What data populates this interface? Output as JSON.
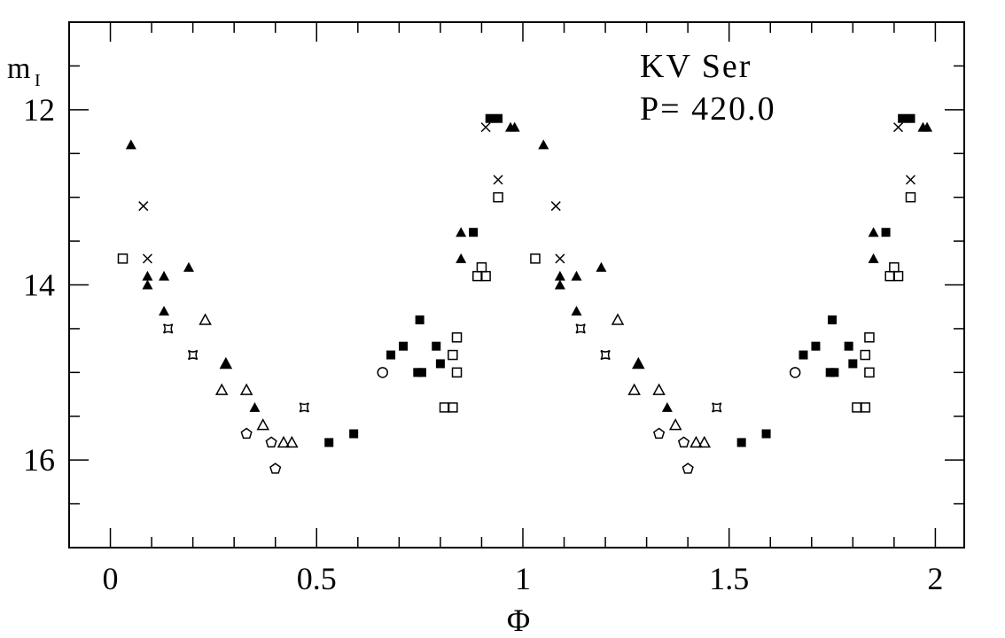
{
  "chart_data": {
    "type": "scatter",
    "title": "",
    "annotations": [
      "KV Ser",
      "P= 420.0"
    ],
    "xlabel": "Φ",
    "ylabel": "m",
    "ylabel_sub": "I",
    "xlim": [
      -0.1,
      2.07
    ],
    "ylim": [
      17.0,
      11.0
    ],
    "y_inverted": true,
    "grid": false,
    "x_ticks": [
      0,
      0.5,
      1,
      1.5,
      2
    ],
    "x_tick_labels": [
      "0",
      "0.5",
      "1",
      "1.5",
      "2"
    ],
    "y_ticks": [
      12,
      14,
      16
    ],
    "y_tick_labels": [
      "12",
      "14",
      "16"
    ],
    "x_minor_step": 0.1,
    "y_minor_step": 0.5,
    "color": "#000000",
    "series": [
      {
        "marker": "filled-triangle",
        "x": [
          0.05,
          0.09,
          0.09,
          0.13,
          0.13,
          0.19,
          0.28,
          0.35,
          0.85,
          0.85,
          0.97,
          0.98,
          1.05,
          1.09,
          1.09,
          1.13,
          1.13,
          1.19,
          1.28,
          1.35,
          1.85,
          1.85,
          1.97,
          1.98
        ],
        "y": [
          12.4,
          13.9,
          14.0,
          13.9,
          14.3,
          13.8,
          14.9,
          15.4,
          13.7,
          13.4,
          12.2,
          12.2,
          12.4,
          13.9,
          14.0,
          13.9,
          14.3,
          13.8,
          14.9,
          15.4,
          13.7,
          13.4,
          12.2,
          12.2
        ]
      },
      {
        "marker": "open-triangle",
        "x": [
          0.23,
          0.28,
          0.27,
          0.33,
          0.37,
          0.42,
          0.44,
          1.23,
          1.28,
          1.27,
          1.33,
          1.37,
          1.42,
          1.44
        ],
        "y": [
          14.4,
          14.9,
          15.2,
          15.2,
          15.6,
          15.8,
          15.8,
          14.4,
          14.9,
          15.2,
          15.2,
          15.6,
          15.8,
          15.8
        ]
      },
      {
        "marker": "filled-square",
        "x": [
          0.53,
          0.59,
          0.68,
          0.71,
          0.75,
          0.745,
          0.755,
          0.79,
          0.8,
          0.88,
          0.92,
          0.94,
          1.53,
          1.59,
          1.68,
          1.71,
          1.75,
          1.745,
          1.755,
          1.79,
          1.8,
          1.88,
          1.92,
          1.94
        ],
        "y": [
          15.8,
          15.7,
          14.8,
          14.7,
          14.4,
          15.0,
          15.0,
          14.7,
          14.9,
          13.4,
          12.1,
          12.1,
          15.8,
          15.7,
          14.8,
          14.7,
          14.4,
          15.0,
          15.0,
          14.7,
          14.9,
          13.4,
          12.1,
          12.1
        ]
      },
      {
        "marker": "open-square",
        "x": [
          0.03,
          0.81,
          0.83,
          0.84,
          0.83,
          0.84,
          0.89,
          0.91,
          0.9,
          0.94,
          1.03,
          1.81,
          1.83,
          1.84,
          1.83,
          1.84,
          1.89,
          1.91,
          1.9,
          1.94
        ],
        "y": [
          13.7,
          15.4,
          15.4,
          14.6,
          14.8,
          15.0,
          13.9,
          13.9,
          13.8,
          13.0,
          13.7,
          15.4,
          15.4,
          14.6,
          14.8,
          15.0,
          13.9,
          13.9,
          13.8,
          13.0
        ]
      },
      {
        "marker": "cross",
        "x": [
          0.08,
          0.09,
          0.91,
          0.94,
          1.08,
          1.09,
          1.91,
          1.94
        ],
        "y": [
          13.1,
          13.7,
          12.2,
          12.8,
          13.1,
          13.7,
          12.2,
          12.8
        ]
      },
      {
        "marker": "star-square",
        "x": [
          0.14,
          0.2,
          0.47,
          1.14,
          1.2,
          1.47
        ],
        "y": [
          14.5,
          14.8,
          15.4,
          14.5,
          14.8,
          15.4
        ]
      },
      {
        "marker": "pentagon",
        "x": [
          0.33,
          0.39,
          0.4,
          1.33,
          1.39,
          1.4
        ],
        "y": [
          15.7,
          15.8,
          16.1,
          15.7,
          15.8,
          16.1
        ]
      },
      {
        "marker": "open-circle",
        "x": [
          0.66,
          1.66
        ],
        "y": [
          15.0,
          15.0
        ]
      }
    ]
  }
}
